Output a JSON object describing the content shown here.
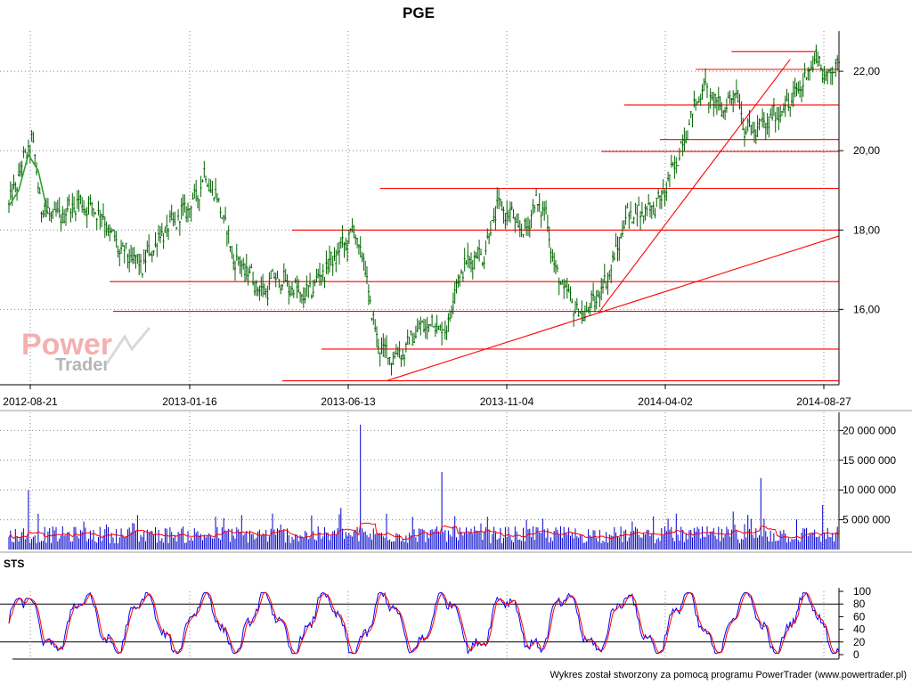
{
  "title": "PGE",
  "footer": "Wykres został stworzony za pomocą programu PowerTrader (www.powertrader.pl)",
  "watermark": {
    "line1": "Power",
    "line2": "Trader"
  },
  "colors": {
    "price_line": "#006400",
    "moving_average": "#2f9e2f",
    "support_lines": "#ff0000",
    "volume_bars": "#0000cc",
    "volume_average": "#ff0000",
    "stochastic_k": "#0000ff",
    "stochastic_d": "#ff0000",
    "grid": "#888888",
    "watermark_red": "#f3b0b0",
    "watermark_gray": "#b5b5b5"
  },
  "chart_data": [
    {
      "type": "line",
      "name": "price",
      "title": "PGE",
      "x_ticks": [
        "2012-08-21",
        "2013-01-16",
        "2013-06-13",
        "2013-11-04",
        "2014-04-02",
        "2014-08-27"
      ],
      "y_ticks": [
        "16,00",
        "18,00",
        "20,00",
        "22,00"
      ],
      "ylim": [
        14.1,
        22.9
      ],
      "grid": true,
      "x_index_range": [
        0,
        510
      ],
      "close_knots": [
        [
          0,
          18.6
        ],
        [
          8,
          19.6
        ],
        [
          14,
          20.3
        ],
        [
          20,
          18.6
        ],
        [
          30,
          18.3
        ],
        [
          42,
          18.7
        ],
        [
          55,
          18.5
        ],
        [
          68,
          17.5
        ],
        [
          82,
          17.1
        ],
        [
          92,
          17.8
        ],
        [
          104,
          18.3
        ],
        [
          115,
          18.8
        ],
        [
          120,
          19.4
        ],
        [
          130,
          18.6
        ],
        [
          138,
          17.3
        ],
        [
          148,
          16.9
        ],
        [
          156,
          16.4
        ],
        [
          164,
          16.8
        ],
        [
          172,
          16.6
        ],
        [
          182,
          16.3
        ],
        [
          192,
          16.9
        ],
        [
          202,
          17.4
        ],
        [
          212,
          18.0
        ],
        [
          218,
          17.2
        ],
        [
          226,
          15.2
        ],
        [
          234,
          14.8
        ],
        [
          242,
          14.9
        ],
        [
          250,
          15.4
        ],
        [
          260,
          15.7
        ],
        [
          268,
          15.4
        ],
        [
          276,
          16.8
        ],
        [
          284,
          17.3
        ],
        [
          292,
          17.4
        ],
        [
          300,
          18.6
        ],
        [
          308,
          18.4
        ],
        [
          316,
          17.9
        ],
        [
          324,
          18.7
        ],
        [
          330,
          18.4
        ],
        [
          336,
          16.9
        ],
        [
          344,
          16.3
        ],
        [
          352,
          15.8
        ],
        [
          360,
          16.2
        ],
        [
          370,
          17.0
        ],
        [
          380,
          18.4
        ],
        [
          390,
          18.5
        ],
        [
          400,
          18.7
        ],
        [
          410,
          19.7
        ],
        [
          418,
          20.7
        ],
        [
          426,
          21.6
        ],
        [
          432,
          21.3
        ],
        [
          440,
          21.0
        ],
        [
          446,
          21.6
        ],
        [
          452,
          20.6
        ],
        [
          458,
          20.5
        ],
        [
          466,
          20.7
        ],
        [
          474,
          21.0
        ],
        [
          482,
          21.3
        ],
        [
          490,
          21.9
        ],
        [
          496,
          22.4
        ],
        [
          502,
          21.8
        ],
        [
          510,
          22.3
        ]
      ],
      "moving_average_knots": [
        [
          0,
          18.6
        ],
        [
          6,
          19.0
        ],
        [
          12,
          19.9
        ],
        [
          18,
          19.5
        ],
        [
          24,
          18.4
        ]
      ],
      "support_levels": [
        {
          "value": 14.2,
          "from": 168,
          "to": 510
        },
        {
          "value": 15.0,
          "from": 192,
          "to": 510
        },
        {
          "value": 15.95,
          "from": 64,
          "to": 510
        },
        {
          "value": 16.7,
          "from": 62,
          "to": 510
        },
        {
          "value": 18.0,
          "from": 174,
          "to": 510
        },
        {
          "value": 19.05,
          "from": 228,
          "to": 510
        },
        {
          "value": 19.98,
          "from": 364,
          "to": 510
        },
        {
          "value": 20.28,
          "from": 400,
          "to": 510
        },
        {
          "value": 21.15,
          "from": 378,
          "to": 510
        },
        {
          "value": 22.05,
          "from": 422,
          "to": 510
        },
        {
          "value": 22.5,
          "from": 444,
          "to": 496
        }
      ],
      "trend_lines": [
        {
          "x1": 232,
          "y1": 14.2,
          "x2": 510,
          "y2": 17.85
        },
        {
          "x1": 362,
          "y1": 15.9,
          "x2": 480,
          "y2": 22.3
        }
      ]
    },
    {
      "type": "bar",
      "name": "volume",
      "y_ticks": [
        "5 000 000",
        "10 000 000",
        "15 000 000",
        "20 000 000"
      ],
      "ylim": [
        0,
        22000000
      ],
      "baseline_volume": 2600000,
      "spikes": [
        [
          12,
          10000000
        ],
        [
          60,
          4200000
        ],
        [
          143,
          5800000
        ],
        [
          204,
          7000000
        ],
        [
          216,
          21000000
        ],
        [
          232,
          6000000
        ],
        [
          266,
          13000000
        ],
        [
          274,
          5600000
        ],
        [
          318,
          5000000
        ],
        [
          405,
          5200000
        ],
        [
          462,
          12000000
        ],
        [
          500,
          7500000
        ]
      ]
    },
    {
      "type": "line",
      "name": "STS",
      "label": "STS",
      "y_ticks": [
        "0",
        "20",
        "40",
        "60",
        "80",
        "100"
      ],
      "ylim": [
        0,
        100
      ],
      "levels": [
        20,
        80
      ]
    }
  ]
}
